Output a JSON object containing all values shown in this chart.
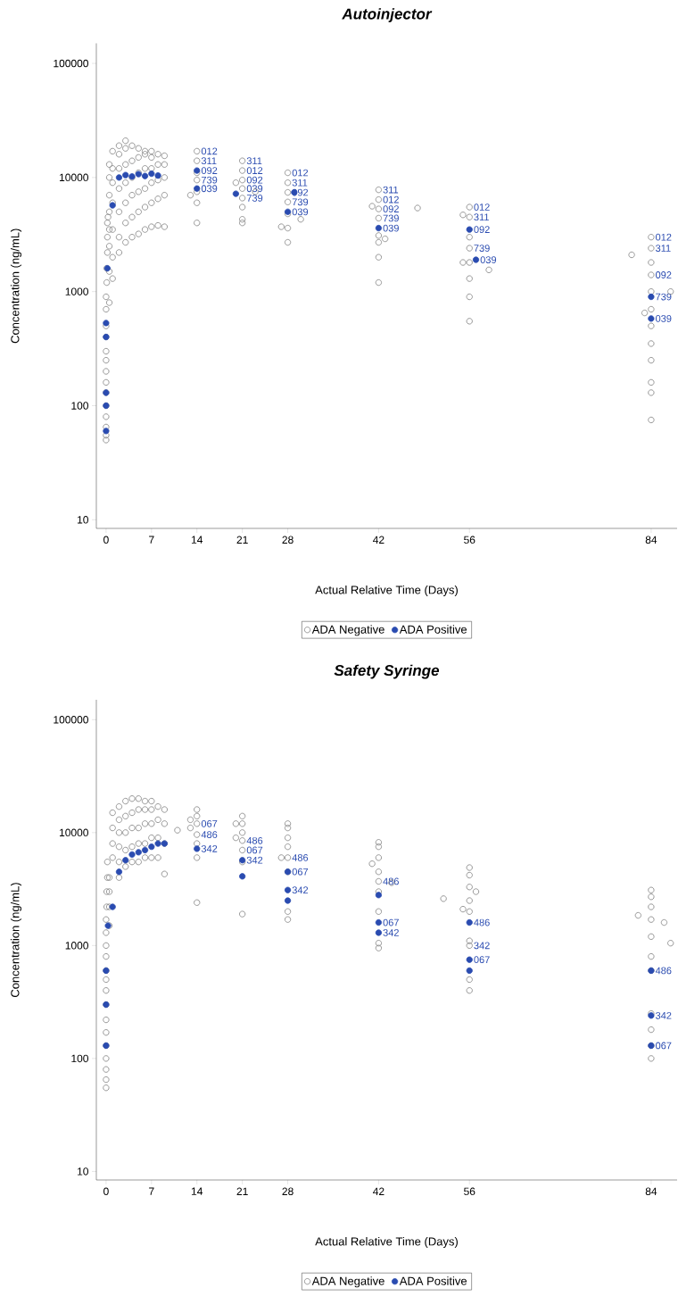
{
  "chart_data": [
    {
      "type": "scatter",
      "title": "Autoinjector",
      "xlabel": "Actual Relative Time (Days)",
      "ylabel": "Concentration (ng/mL)",
      "log": "y",
      "marker": "circle",
      "legend": "bottom",
      "grid": false,
      "xlim": [
        -1.5,
        88
      ],
      "ylim": [
        8.4,
        150000
      ],
      "xticks": [
        0,
        7,
        14,
        21,
        28,
        42,
        56,
        84
      ],
      "yticks": [
        10,
        100,
        1000,
        10000,
        100000
      ],
      "series": [
        {
          "name": "ADA Negative",
          "color": "#808080",
          "x": [
            0,
            0,
            0,
            0,
            0,
            0,
            0,
            0,
            0,
            0,
            0,
            0,
            0,
            0,
            0.1,
            0.1,
            0.2,
            0.2,
            0.2,
            0.3,
            0.5,
            0.5,
            0.5,
            0.5,
            0.5,
            0.5,
            0.5,
            0.5,
            1,
            1,
            1,
            1,
            1,
            1,
            1,
            2,
            2,
            2,
            2,
            2,
            2,
            2,
            3,
            3,
            3,
            3,
            3,
            3,
            3,
            4,
            4,
            4,
            4,
            4,
            4,
            5,
            5,
            5,
            5,
            5,
            5,
            6,
            6,
            6,
            6,
            6,
            6,
            7,
            7,
            7,
            7,
            7,
            7,
            8,
            8,
            8,
            8,
            8,
            9,
            9,
            9,
            9,
            9,
            14,
            14,
            14,
            14,
            14,
            14,
            14,
            13,
            21,
            21,
            21,
            21,
            21,
            21,
            21,
            21,
            20,
            23,
            28,
            28,
            28,
            28,
            28,
            28,
            28,
            27,
            30,
            42,
            42,
            42,
            42,
            42,
            42,
            42,
            42,
            41,
            43,
            48,
            56,
            56,
            56,
            56,
            56,
            56,
            56,
            56,
            55,
            59,
            55,
            84,
            84,
            84,
            84,
            84,
            84,
            84,
            84,
            84,
            84,
            84,
            84,
            81,
            87,
            83
          ],
          "values": [
            50,
            55,
            65,
            80,
            100,
            130,
            160,
            200,
            250,
            300,
            400,
            500,
            700,
            900,
            1200,
            1600,
            2200,
            3000,
            4000,
            4500,
            800,
            1500,
            2500,
            3500,
            5000,
            7000,
            10000,
            13000,
            1300,
            2000,
            3500,
            6000,
            9000,
            12000,
            17000,
            2200,
            3000,
            5000,
            8000,
            12000,
            16000,
            19000,
            2700,
            4000,
            6000,
            9000,
            13000,
            18000,
            21000,
            3000,
            4500,
            7000,
            10000,
            14000,
            19000,
            3200,
            5000,
            7500,
            11000,
            15000,
            18000,
            3500,
            5500,
            8000,
            12000,
            16000,
            17000,
            3700,
            6000,
            9000,
            12000,
            15000,
            17000,
            3800,
            6500,
            9500,
            13000,
            16000,
            3700,
            7000,
            10000,
            13000,
            15500,
            4000,
            6000,
            7500,
            9500,
            11000,
            14000,
            17000,
            7000,
            4000,
            4300,
            5500,
            6600,
            8000,
            9500,
            11500,
            14000,
            9000,
            7500,
            2700,
            3600,
            4800,
            6100,
            7400,
            9000,
            11000,
            3700,
            4300,
            1200,
            2000,
            2700,
            3100,
            4400,
            5300,
            6400,
            7800,
            5600,
            2900,
            5400,
            550,
            900,
            1300,
            1800,
            2400,
            3000,
            4500,
            5500,
            1800,
            1550,
            4700,
            75,
            130,
            160,
            250,
            350,
            500,
            700,
            1000,
            1400,
            1800,
            2400,
            3000,
            2100,
            1000,
            650
          ]
        },
        {
          "name": "ADA Positive",
          "color": "#2a4bb0",
          "x": [
            0,
            0,
            0,
            0,
            0,
            0.2,
            1,
            2,
            3,
            4,
            5,
            6,
            7,
            8,
            14,
            14,
            20,
            28,
            29,
            42,
            56,
            57,
            84,
            84
          ],
          "values": [
            60,
            100,
            130,
            400,
            530,
            1600,
            5700,
            10000,
            10500,
            10200,
            10700,
            10300,
            10800,
            10400,
            8000,
            11500,
            7200,
            5000,
            7400,
            3600,
            3500,
            1900,
            580,
            900
          ]
        }
      ],
      "annotations": [
        {
          "text": "012",
          "x": 14,
          "y": 17000
        },
        {
          "text": "311",
          "x": 14,
          "y": 14000
        },
        {
          "text": "092",
          "x": 14,
          "y": 11500
        },
        {
          "text": "739",
          "x": 14,
          "y": 9500
        },
        {
          "text": "039",
          "x": 14,
          "y": 8000
        },
        {
          "text": "311",
          "x": 21,
          "y": 14000
        },
        {
          "text": "012",
          "x": 21,
          "y": 11500
        },
        {
          "text": "092",
          "x": 21,
          "y": 9500
        },
        {
          "text": "039",
          "x": 21,
          "y": 8000
        },
        {
          "text": "739",
          "x": 21,
          "y": 6600
        },
        {
          "text": "012",
          "x": 28,
          "y": 11000
        },
        {
          "text": "311",
          "x": 28,
          "y": 9000
        },
        {
          "text": "092",
          "x": 28,
          "y": 7400
        },
        {
          "text": "739",
          "x": 28,
          "y": 6100
        },
        {
          "text": "039",
          "x": 28,
          "y": 5000
        },
        {
          "text": "311",
          "x": 42,
          "y": 7800
        },
        {
          "text": "012",
          "x": 42,
          "y": 6400
        },
        {
          "text": "092",
          "x": 42,
          "y": 5300
        },
        {
          "text": "739",
          "x": 42,
          "y": 4400
        },
        {
          "text": "039",
          "x": 42,
          "y": 3600
        },
        {
          "text": "012",
          "x": 56,
          "y": 5500
        },
        {
          "text": "311",
          "x": 56,
          "y": 4500
        },
        {
          "text": "092",
          "x": 56,
          "y": 3500
        },
        {
          "text": "739",
          "x": 56,
          "y": 2400
        },
        {
          "text": "039",
          "x": 57,
          "y": 1900
        },
        {
          "text": "012",
          "x": 84,
          "y": 3000
        },
        {
          "text": "311",
          "x": 84,
          "y": 2400
        },
        {
          "text": "092",
          "x": 84,
          "y": 1400
        },
        {
          "text": "739",
          "x": 84,
          "y": 900
        },
        {
          "text": "039",
          "x": 84,
          "y": 580
        }
      ]
    },
    {
      "type": "scatter",
      "title": "Safety Syringe",
      "xlabel": "Actual Relative Time (Days)",
      "ylabel": "Concentration (ng/mL)",
      "log": "y",
      "marker": "circle",
      "legend": "bottom",
      "grid": false,
      "xlim": [
        -1.5,
        88
      ],
      "ylim": [
        8.4,
        150000
      ],
      "xticks": [
        0,
        7,
        14,
        21,
        28,
        42,
        56,
        84
      ],
      "yticks": [
        10,
        100,
        1000,
        10000,
        100000
      ],
      "series": [
        {
          "name": "ADA Negative",
          "color": "#808080",
          "x": [
            0,
            0,
            0,
            0,
            0,
            0,
            0,
            0,
            0,
            0,
            0,
            0,
            0,
            0,
            0,
            0.1,
            0.1,
            0.2,
            0.2,
            0.5,
            0.5,
            0.5,
            0.5,
            1,
            1,
            1,
            1,
            2,
            2,
            2,
            2,
            2,
            2,
            3,
            3,
            3,
            3,
            3,
            4,
            4,
            4,
            4,
            4,
            5,
            5,
            5,
            5,
            5,
            6,
            6,
            6,
            6,
            6,
            7,
            7,
            7,
            7,
            7,
            8,
            8,
            8,
            8,
            9,
            9,
            9,
            9,
            11,
            14,
            14,
            14,
            14,
            14,
            14,
            14,
            13,
            13,
            21,
            21,
            21,
            21,
            21,
            21,
            21,
            20,
            20,
            28,
            28,
            28,
            28,
            28,
            28,
            28,
            28,
            27,
            42,
            42,
            42,
            42,
            42,
            42,
            42,
            42,
            42,
            41,
            44,
            56,
            56,
            56,
            56,
            56,
            56,
            56,
            56,
            56,
            52,
            55,
            57,
            84,
            84,
            84,
            84,
            84,
            84,
            84,
            84,
            84,
            84,
            84,
            82,
            86,
            87
          ],
          "values": [
            55,
            65,
            80,
            100,
            130,
            170,
            220,
            300,
            400,
            500,
            600,
            800,
            1000,
            1300,
            1700,
            2200,
            3000,
            4000,
            5500,
            1500,
            2200,
            3000,
            4000,
            6000,
            8000,
            11000,
            15000,
            4000,
            5500,
            7500,
            10000,
            13000,
            17000,
            5000,
            7000,
            10000,
            14000,
            19000,
            5500,
            7500,
            11000,
            15000,
            20000,
            5500,
            8000,
            11000,
            16000,
            20000,
            6000,
            8000,
            12000,
            16000,
            19000,
            6000,
            9000,
            12000,
            16000,
            19000,
            6000,
            9000,
            13000,
            17000,
            4300,
            8000,
            12000,
            16000,
            10500,
            2400,
            6000,
            8000,
            9600,
            12000,
            14000,
            16000,
            11000,
            13000,
            1900,
            5500,
            7000,
            8500,
            10000,
            12000,
            14000,
            12000,
            9000,
            1700,
            2000,
            4500,
            6000,
            7500,
            9000,
            11000,
            12000,
            6000,
            950,
            1050,
            2000,
            3000,
            3700,
            4500,
            6000,
            7500,
            8200,
            5300,
            3600,
            400,
            500,
            1000,
            1100,
            2000,
            2500,
            3300,
            4200,
            4900,
            2600,
            2100,
            3000,
            100,
            130,
            180,
            250,
            600,
            800,
            1200,
            1700,
            2200,
            2700,
            3100,
            1850,
            1600,
            1050
          ]
        },
        {
          "name": "ADA Positive",
          "color": "#2a4bb0",
          "x": [
            0,
            0,
            0,
            0.3,
            1,
            2,
            3,
            4,
            5,
            6,
            7,
            8,
            9,
            14,
            21,
            21,
            28,
            28,
            28,
            42,
            42,
            42,
            56,
            56,
            56,
            84,
            84,
            84
          ],
          "values": [
            130,
            300,
            600,
            1500,
            2200,
            4500,
            5700,
            6400,
            6700,
            7000,
            7500,
            8000,
            8000,
            7200,
            5700,
            4100,
            4500,
            3100,
            2500,
            2800,
            1600,
            1300,
            1600,
            750,
            600,
            600,
            240,
            130
          ]
        }
      ],
      "annotations": [
        {
          "text": "067",
          "x": 14,
          "y": 12000
        },
        {
          "text": "342",
          "x": 14,
          "y": 7200
        },
        {
          "text": "486",
          "x": 14,
          "y": 9600
        },
        {
          "text": "486",
          "x": 21,
          "y": 8500
        },
        {
          "text": "067",
          "x": 21,
          "y": 7000
        },
        {
          "text": "342",
          "x": 21,
          "y": 5700
        },
        {
          "text": "486",
          "x": 28,
          "y": 6000
        },
        {
          "text": "067",
          "x": 28,
          "y": 4500
        },
        {
          "text": "342",
          "x": 28,
          "y": 3100
        },
        {
          "text": "486",
          "x": 42,
          "y": 3700
        },
        {
          "text": "067",
          "x": 42,
          "y": 1600
        },
        {
          "text": "342",
          "x": 42,
          "y": 1300
        },
        {
          "text": "486",
          "x": 56,
          "y": 1600
        },
        {
          "text": "342",
          "x": 56,
          "y": 1000
        },
        {
          "text": "067",
          "x": 56,
          "y": 750
        },
        {
          "text": "486",
          "x": 84,
          "y": 600
        },
        {
          "text": "342",
          "x": 84,
          "y": 240
        },
        {
          "text": "067",
          "x": 84,
          "y": 130
        }
      ]
    }
  ]
}
